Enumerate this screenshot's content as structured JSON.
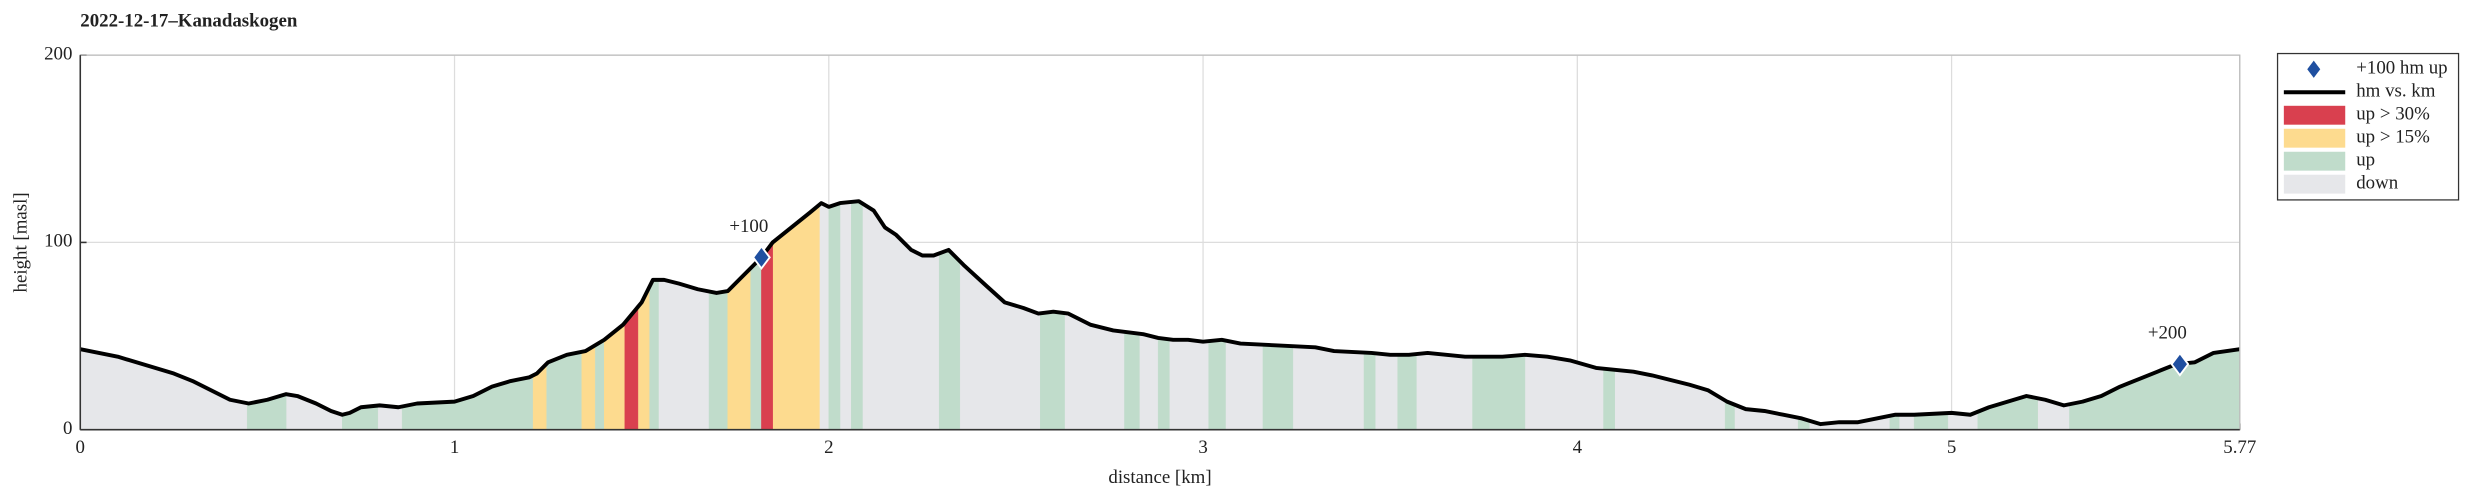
{
  "chart_data": {
    "type": "line",
    "title": "2022-12-17–Kanadaskogen",
    "x_label": "distance [km]",
    "y_label": "height [masl]",
    "xlim": [
      0,
      5.77
    ],
    "ylim": [
      0,
      200
    ],
    "xticks": [
      0,
      1,
      2,
      3,
      4,
      5,
      5.77
    ],
    "yticks": [
      0,
      100,
      200
    ],
    "grid": true,
    "legend": "outside-right",
    "series": [
      {
        "name": "+100 hm up",
        "color": "#1f4fa0",
        "x": [
          1.82,
          5.61
        ],
        "values": [
          92,
          35
        ],
        "value_labels": [
          "+100",
          "+200"
        ]
      },
      {
        "name": "hm vs. km",
        "color": "#000000",
        "x": [
          0,
          0.1,
          0.2,
          0.25,
          0.3,
          0.35,
          0.4,
          0.45,
          0.5,
          0.55,
          0.58,
          0.63,
          0.67,
          0.7,
          0.72,
          0.75,
          0.8,
          0.85,
          0.9,
          1.0,
          1.05,
          1.1,
          1.15,
          1.2,
          1.22,
          1.25,
          1.3,
          1.35,
          1.4,
          1.45,
          1.5,
          1.53,
          1.56,
          1.6,
          1.65,
          1.7,
          1.73,
          1.76,
          1.8,
          1.82,
          1.85,
          1.9,
          1.95,
          1.98,
          2.0,
          2.03,
          2.08,
          2.12,
          2.15,
          2.18,
          2.22,
          2.25,
          2.28,
          2.32,
          2.36,
          2.42,
          2.47,
          2.52,
          2.56,
          2.6,
          2.64,
          2.7,
          2.76,
          2.84,
          2.88,
          2.92,
          2.96,
          3.0,
          3.05,
          3.1,
          3.2,
          3.3,
          3.35,
          3.45,
          3.5,
          3.55,
          3.6,
          3.7,
          3.8,
          3.86,
          3.92,
          3.98,
          4.05,
          4.1,
          4.15,
          4.2,
          4.3,
          4.35,
          4.4,
          4.45,
          4.5,
          4.55,
          4.6,
          4.65,
          4.7,
          4.75,
          4.8,
          4.85,
          4.9,
          5.0,
          5.05,
          5.1,
          5.15,
          5.2,
          5.25,
          5.3,
          5.35,
          5.4,
          5.45,
          5.5,
          5.55,
          5.6,
          5.65,
          5.7,
          5.77
        ],
        "values": [
          43,
          39,
          33,
          30,
          26,
          21,
          16,
          14,
          16,
          19,
          18,
          14,
          10,
          8,
          9,
          12,
          13,
          12,
          14,
          15,
          18,
          23,
          26,
          28,
          30,
          36,
          40,
          42,
          48,
          56,
          68,
          80,
          80,
          78,
          75,
          73,
          74,
          80,
          88,
          92,
          100,
          108,
          116,
          121,
          119,
          121,
          122,
          117,
          108,
          104,
          96,
          93,
          93,
          96,
          88,
          77,
          68,
          65,
          62,
          63,
          62,
          56,
          53,
          51,
          49,
          48,
          48,
          47,
          48,
          46,
          45,
          44,
          42,
          41,
          40,
          40,
          41,
          39,
          39,
          40,
          39,
          37,
          33,
          32,
          31,
          29,
          24,
          21,
          15,
          11,
          10,
          8,
          6,
          3,
          4,
          4,
          6,
          8,
          8,
          9,
          8,
          12,
          15,
          18,
          16,
          13,
          15,
          18,
          23,
          27,
          31,
          35,
          36,
          41,
          43
        ]
      },
      {
        "name": "up > 30%",
        "color": "#d9404f",
        "ranges": [
          [
            1.455,
            1.49
          ],
          [
            1.82,
            1.85
          ]
        ]
      },
      {
        "name": "up > 15%",
        "color": "#fddb8f",
        "ranges": [
          [
            1.21,
            1.245
          ],
          [
            1.34,
            1.375
          ],
          [
            1.4,
            1.455
          ],
          [
            1.49,
            1.52
          ],
          [
            1.73,
            1.79
          ],
          [
            1.85,
            1.975
          ]
        ]
      },
      {
        "name": "up",
        "color": "#c0dccb",
        "ranges": [
          [
            0.446,
            0.55
          ],
          [
            0.7,
            0.795
          ],
          [
            0.86,
            1.21
          ],
          [
            1.245,
            1.34
          ],
          [
            1.375,
            1.4
          ],
          [
            1.52,
            1.545
          ],
          [
            1.68,
            1.73
          ],
          [
            1.79,
            1.82
          ],
          [
            2.0,
            2.03
          ],
          [
            2.06,
            2.09
          ],
          [
            2.295,
            2.35
          ],
          [
            2.565,
            2.63
          ],
          [
            2.79,
            2.83
          ],
          [
            2.88,
            2.91
          ],
          [
            3.015,
            3.06
          ],
          [
            3.16,
            3.24
          ],
          [
            3.43,
            3.46
          ],
          [
            3.52,
            3.57
          ],
          [
            3.72,
            3.86
          ],
          [
            4.07,
            4.1
          ],
          [
            4.395,
            4.42
          ],
          [
            4.59,
            4.62
          ],
          [
            4.835,
            4.86
          ],
          [
            4.9,
            4.99
          ],
          [
            5.07,
            5.23
          ],
          [
            5.315,
            5.77
          ]
        ]
      },
      {
        "name": "down",
        "color": "#e6e7ea",
        "ranges": [
          [
            0,
            5.77
          ]
        ]
      }
    ]
  }
}
